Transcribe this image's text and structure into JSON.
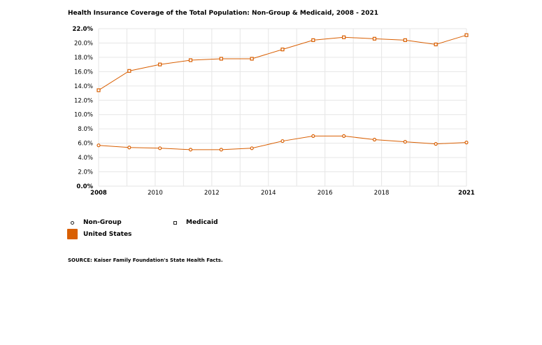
{
  "chart_data": {
    "type": "line",
    "title": "Health Insurance Coverage of the Total Population: Non-Group & Medicaid, 2008 - 2021",
    "x": [
      2008,
      2009,
      2010,
      2011,
      2012,
      2013,
      2014,
      2015,
      2016,
      2017,
      2018,
      2019,
      2020,
      2021
    ],
    "x_ticks": [
      "2008",
      "2010",
      "2012",
      "2014",
      "2016",
      "2018",
      "2021"
    ],
    "y_ticks": [
      "0.0%",
      "2.0%",
      "4.0%",
      "6.0%",
      "8.0%",
      "10.0%",
      "12.0%",
      "14.0%",
      "16.0%",
      "18.0%",
      "20.0%",
      "22.0%"
    ],
    "ylim": [
      0,
      22
    ],
    "xlim": [
      2008,
      2021
    ],
    "grid": true,
    "series": [
      {
        "name": "Non-Group",
        "marker": "circle",
        "values": [
          5.7,
          5.4,
          5.3,
          5.1,
          5.1,
          5.3,
          6.3,
          7.0,
          7.0,
          6.5,
          6.2,
          5.9,
          6.1,
          null
        ]
      },
      {
        "name": "Medicaid",
        "marker": "square",
        "values": [
          13.4,
          16.1,
          17.0,
          17.6,
          17.8,
          17.8,
          19.1,
          20.4,
          20.8,
          20.6,
          20.4,
          19.8,
          21.1,
          null
        ]
      }
    ],
    "line_color": "#d95f02",
    "marker_stroke": "#d95f02",
    "grid_color": "#e6e6e6"
  },
  "legend": {
    "non_group_label": "Non-Group",
    "medicaid_label": "Medicaid",
    "region_label": "United States",
    "region_color": "#d95f02"
  },
  "source": "SOURCE: Kaiser Family Foundation's State Health Facts."
}
